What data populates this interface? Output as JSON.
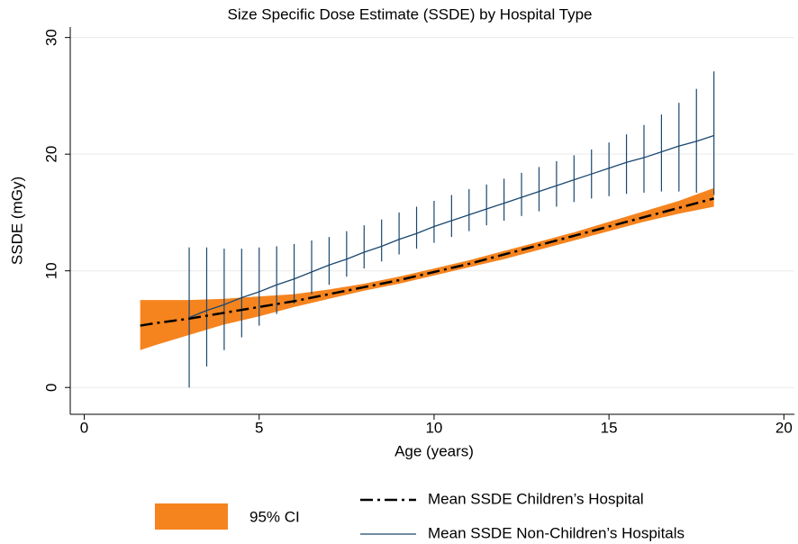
{
  "chart_data": {
    "type": "line",
    "title": "Size Specific Dose Estimate (SSDE) by Hospital Type",
    "xlabel": "Age (years)",
    "ylabel": "SSDE (mGy)",
    "xlim": [
      -0.4,
      20.3
    ],
    "ylim": [
      -2.3,
      30.9
    ],
    "xticks": [
      0,
      5,
      10,
      15,
      20
    ],
    "yticks": [
      0,
      10,
      20,
      30
    ],
    "grid": true,
    "ci_label": "95% CI",
    "ci_color": "#f5841f",
    "series": [
      {
        "name": "Mean SSDE Children’s Hospital",
        "color": "#000000",
        "style": "dashdot",
        "ci_style": "band",
        "x": [
          1.6,
          2,
          3,
          4,
          5,
          6,
          7,
          8,
          9,
          10,
          11,
          12,
          13,
          14,
          15,
          16,
          17,
          18
        ],
        "values": [
          5.3,
          5.5,
          5.9,
          6.4,
          6.9,
          7.4,
          8.0,
          8.6,
          9.2,
          9.9,
          10.6,
          11.4,
          12.2,
          13.0,
          13.8,
          14.6,
          15.4,
          16.2
        ],
        "lower": [
          3.2,
          3.6,
          4.5,
          5.4,
          6.1,
          6.9,
          7.6,
          8.3,
          8.9,
          9.6,
          10.3,
          11.0,
          11.8,
          12.6,
          13.4,
          14.2,
          14.9,
          15.5
        ],
        "upper": [
          7.5,
          7.5,
          7.5,
          7.6,
          7.8,
          8.0,
          8.4,
          8.9,
          9.5,
          10.2,
          10.9,
          11.7,
          12.5,
          13.3,
          14.2,
          15.1,
          16.0,
          17.1
        ]
      },
      {
        "name": "Mean SSDE Non-Children’s Hospitals",
        "color": "#1a476f",
        "style": "solid",
        "ci_style": "spikes",
        "x": [
          3,
          3.5,
          4,
          4.5,
          5,
          5.5,
          6,
          6.5,
          7,
          7.5,
          8,
          8.5,
          9,
          9.5,
          10,
          10.5,
          11,
          11.5,
          12,
          12.5,
          13,
          13.5,
          14,
          14.5,
          15,
          15.5,
          16,
          16.5,
          17,
          17.5,
          18
        ],
        "values": [
          6.0,
          6.6,
          7.1,
          7.7,
          8.2,
          8.8,
          9.3,
          9.9,
          10.5,
          11.0,
          11.6,
          12.1,
          12.7,
          13.2,
          13.8,
          14.3,
          14.8,
          15.3,
          15.8,
          16.3,
          16.8,
          17.3,
          17.8,
          18.3,
          18.8,
          19.3,
          19.7,
          20.2,
          20.7,
          21.1,
          21.6
        ],
        "lower": [
          0,
          1.8,
          3.2,
          4.3,
          5.3,
          6.3,
          7.2,
          8.0,
          8.8,
          9.5,
          10.2,
          10.8,
          11.4,
          11.9,
          12.4,
          12.9,
          13.4,
          13.9,
          14.3,
          14.7,
          15.1,
          15.5,
          15.9,
          16.2,
          16.4,
          16.6,
          16.7,
          16.8,
          16.8,
          16.7,
          16.5
        ],
        "upper": [
          12.0,
          12.0,
          11.9,
          11.9,
          12.0,
          12.1,
          12.3,
          12.6,
          12.9,
          13.4,
          13.9,
          14.4,
          15.0,
          15.5,
          16.0,
          16.5,
          17.0,
          17.4,
          17.9,
          18.4,
          18.9,
          19.4,
          19.9,
          20.4,
          21.0,
          21.7,
          22.5,
          23.4,
          24.4,
          25.6,
          27.1
        ]
      }
    ]
  }
}
